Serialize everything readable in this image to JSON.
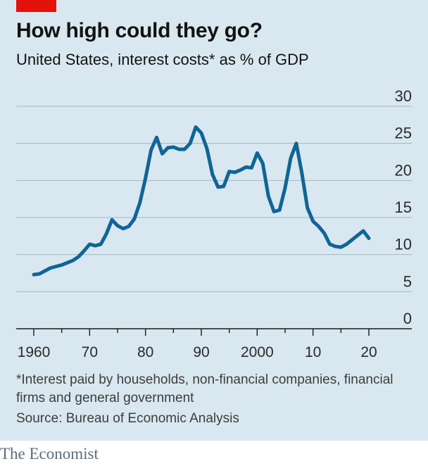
{
  "header": {
    "title": "How high could they go?",
    "subtitle": "United States, interest costs* as % of GDP"
  },
  "footer": {
    "footnote": "*Interest paid by households, non-financial companies, financial firms and general government",
    "source": "Source: Bureau of Economic Analysis",
    "brand": "The Economist"
  },
  "colors": {
    "background": "#d9e7f0",
    "line": "#0f6595",
    "gridline": "#a5b6c2",
    "accent": "#e3120b"
  },
  "chart_data": {
    "type": "line",
    "title": "How high could they go?",
    "subtitle": "United States, interest costs* as % of GDP",
    "xlabel": "",
    "ylabel": "",
    "ylim": [
      0,
      30
    ],
    "xlim": [
      1959,
      2024
    ],
    "yticks": [
      0,
      5,
      10,
      15,
      20,
      25,
      30
    ],
    "ytick_labels": [
      "0",
      "5",
      "10",
      "15",
      "20",
      "25",
      "30"
    ],
    "xticks": [
      1960,
      1970,
      1980,
      1990,
      2000,
      2010,
      2020
    ],
    "xtick_labels": [
      "1960",
      "70",
      "80",
      "90",
      "2000",
      "10",
      "20"
    ],
    "grid": true,
    "legend": "none",
    "series": [
      {
        "x": [
          1960,
          1961,
          1962,
          1963,
          1964,
          1965,
          1966,
          1967,
          1968,
          1969,
          1970,
          1971,
          1972,
          1973,
          1974,
          1975,
          1976,
          1977,
          1978,
          1979,
          1980,
          1981,
          1982,
          1983,
          1984,
          1985,
          1986,
          1987,
          1988,
          1989,
          1990,
          1991,
          1992,
          1993,
          1994,
          1995,
          1996,
          1997,
          1998,
          1999,
          2000,
          2001,
          2002,
          2003,
          2004,
          2005,
          2006,
          2007,
          2008,
          2009,
          2010,
          2011,
          2012,
          2013,
          2014,
          2015,
          2016,
          2017,
          2018,
          2019,
          2020
        ],
        "values": [
          7.3,
          7.4,
          7.8,
          8.2,
          8.4,
          8.6,
          8.9,
          9.2,
          9.7,
          10.5,
          11.4,
          11.2,
          11.4,
          12.8,
          14.7,
          13.9,
          13.5,
          13.8,
          14.8,
          17.0,
          20.3,
          24.1,
          25.8,
          23.6,
          24.4,
          24.5,
          24.2,
          24.2,
          25.0,
          27.2,
          26.4,
          24.3,
          20.8,
          19.1,
          19.2,
          21.2,
          21.1,
          21.4,
          21.8,
          21.7,
          23.7,
          22.3,
          17.9,
          15.8,
          16.0,
          19.0,
          23.0,
          25.0,
          21.0,
          16.3,
          14.5,
          13.8,
          12.9,
          11.4,
          11.1,
          11.0,
          11.4,
          12.0,
          12.6,
          13.2,
          12.2
        ]
      }
    ]
  }
}
